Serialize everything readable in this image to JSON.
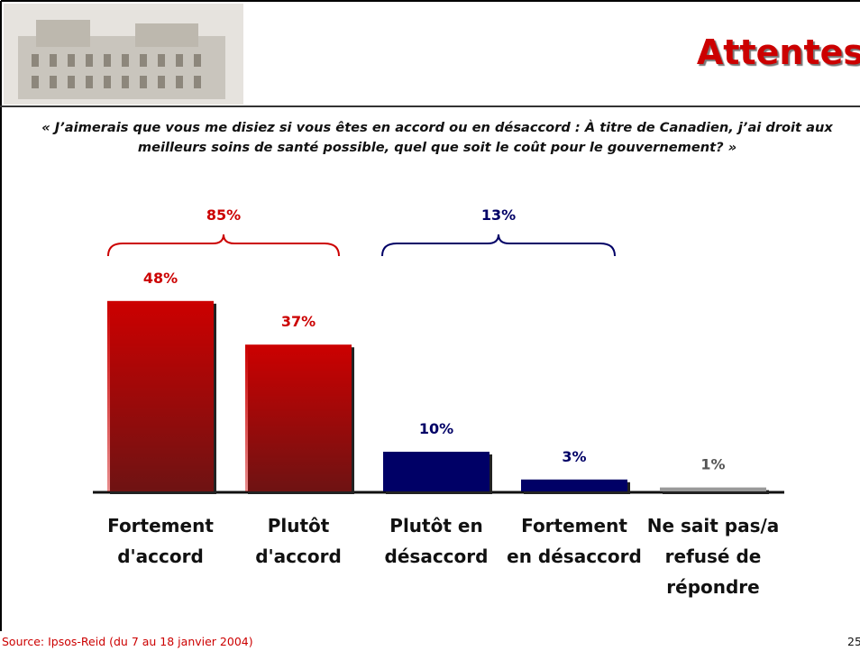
{
  "header": {
    "title": "Attentes"
  },
  "question": "« J’aimerais que vous me disiez si vous êtes en accord ou en désaccord :  À titre de Canadien, j’ai droit aux meilleurs soins de santé possible, quel que soit le coût pour le gouvernement? »",
  "chart_data": {
    "type": "bar",
    "categories": [
      "Fortement d'accord",
      "Plutôt d'accord",
      "Plutôt en désaccord",
      "Fortement en désaccord",
      "Ne sait pas/a refusé de répondre"
    ],
    "values": [
      48,
      37,
      10,
      3,
      1
    ],
    "value_labels": [
      "48%",
      "37%",
      "10%",
      "3%",
      "1%"
    ],
    "colors": [
      "#cc0000",
      "#cc0000",
      "#000066",
      "#000066",
      "#999999"
    ],
    "label_colors": [
      "#cc0000",
      "#cc0000",
      "#000066",
      "#000066",
      "#555555"
    ],
    "groups": [
      {
        "value": 85,
        "value_label": "85%",
        "color": "#cc0000"
      },
      {
        "value": 13,
        "value_label": "13%",
        "color": "#000066"
      }
    ]
  },
  "footer": {
    "source": "Source: Ipsos-Reid (du 7 au 18 janvier 2004)",
    "page": "25"
  }
}
